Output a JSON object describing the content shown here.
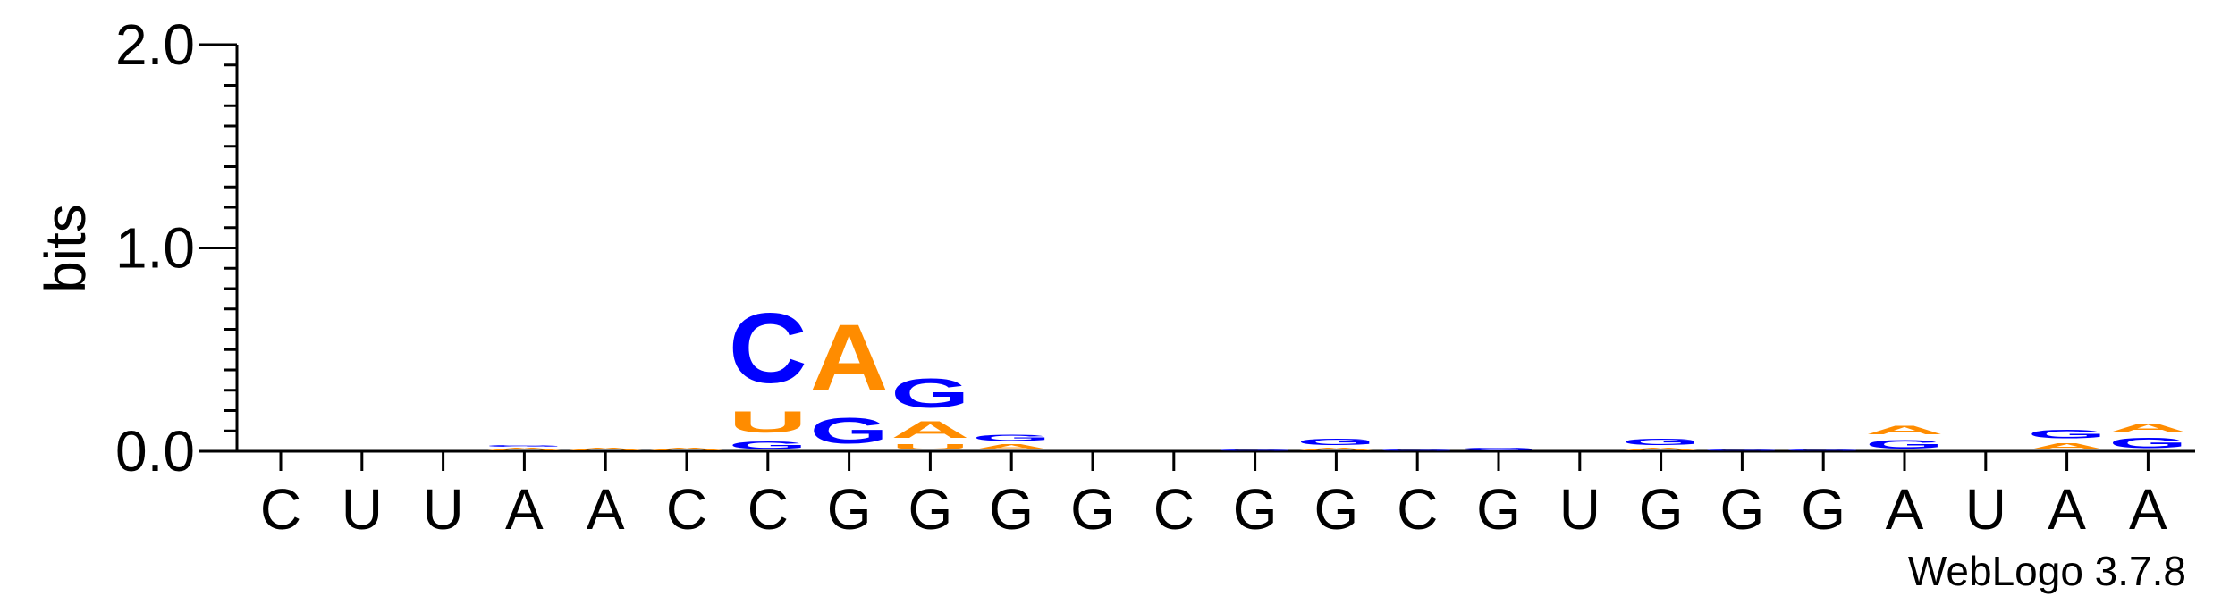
{
  "chart_data": {
    "type": "sequence-logo",
    "ylabel": "bits",
    "ylim": [
      0,
      2.0
    ],
    "yticks": [
      {
        "value": 0.0,
        "label": "0.0"
      },
      {
        "value": 1.0,
        "label": "1.0"
      },
      {
        "value": 2.0,
        "label": "2.0"
      }
    ],
    "y_minor_step": 0.1,
    "positions": [
      "C",
      "U",
      "U",
      "A",
      "A",
      "C",
      "C",
      "G",
      "G",
      "G",
      "G",
      "C",
      "G",
      "G",
      "C",
      "G",
      "U",
      "G",
      "G",
      "G",
      "A",
      "U",
      "A",
      "A"
    ],
    "letter_colors": {
      "A": "#ff8c00",
      "U": "#ff8c00",
      "C": "#0000ff",
      "G": "#0000ff"
    },
    "stacks": [
      [],
      [],
      [],
      [
        {
          "letter": "A",
          "height": 0.02
        },
        {
          "letter": "G",
          "height": 0.015
        }
      ],
      [
        {
          "letter": "A",
          "height": 0.02
        }
      ],
      [
        {
          "letter": "A",
          "height": 0.02
        }
      ],
      [
        {
          "letter": "G",
          "height": 0.06
        },
        {
          "letter": "U",
          "height": 0.17
        },
        {
          "letter": "C",
          "height": 0.55
        }
      ],
      [
        {
          "letter": "G",
          "height": 0.2
        },
        {
          "letter": "A",
          "height": 0.52
        }
      ],
      [
        {
          "letter": "U",
          "height": 0.04
        },
        {
          "letter": "A",
          "height": 0.13
        },
        {
          "letter": "G",
          "height": 0.23
        }
      ],
      [
        {
          "letter": "A",
          "height": 0.04
        },
        {
          "letter": "G",
          "height": 0.05
        }
      ],
      [],
      [],
      [
        {
          "letter": "G",
          "height": 0.01
        }
      ],
      [
        {
          "letter": "A",
          "height": 0.02
        },
        {
          "letter": "G",
          "height": 0.05
        }
      ],
      [
        {
          "letter": "G",
          "height": 0.01
        }
      ],
      [
        {
          "letter": "G",
          "height": 0.02
        }
      ],
      [],
      [
        {
          "letter": "A",
          "height": 0.02
        },
        {
          "letter": "G",
          "height": 0.05
        }
      ],
      [
        {
          "letter": "G",
          "height": 0.01
        }
      ],
      [
        {
          "letter": "G",
          "height": 0.01
        }
      ],
      [
        {
          "letter": "G",
          "height": 0.07
        },
        {
          "letter": "A",
          "height": 0.07
        }
      ],
      [],
      [
        {
          "letter": "A",
          "height": 0.05
        },
        {
          "letter": "G",
          "height": 0.07
        }
      ],
      [
        {
          "letter": "G",
          "height": 0.08
        },
        {
          "letter": "A",
          "height": 0.07
        }
      ]
    ]
  },
  "footer": {
    "version": "WebLogo 3.7.8"
  }
}
